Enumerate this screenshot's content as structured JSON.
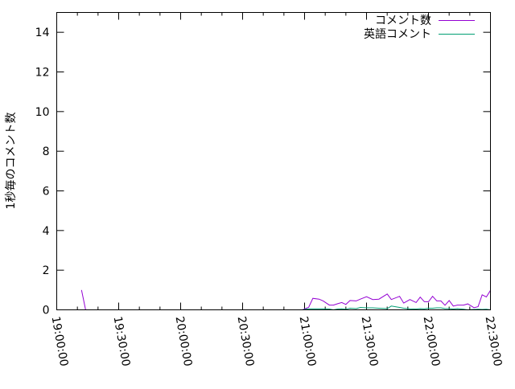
{
  "chart_data": {
    "type": "line",
    "title": "",
    "xlabel": "",
    "ylabel": "1秒毎のコメント数",
    "xlim": [
      "19:00:00",
      "22:30:00"
    ],
    "ylim": [
      0,
      15
    ],
    "x_ticks": [
      "19:00:00",
      "19:30:00",
      "20:00:00",
      "20:30:00",
      "21:00:00",
      "21:30:00",
      "22:00:00",
      "22:30:00"
    ],
    "y_ticks": [
      0,
      2,
      4,
      6,
      8,
      10,
      12,
      14
    ],
    "grid": false,
    "legend_position": "top-right",
    "series": [
      {
        "name": "コメント数",
        "color": "#9400d3",
        "x": [
          "19:12:00",
          "19:14:00",
          "20:45:00",
          "20:55:00",
          "20:59:00",
          "21:02:00",
          "21:04:00",
          "21:07:00",
          "21:09:00",
          "21:12:00",
          "21:14:00",
          "21:16:00",
          "21:18:00",
          "21:20:00",
          "21:22:00",
          "21:25:00",
          "21:27:00",
          "21:30:00",
          "21:33:00",
          "21:36:00",
          "21:40:00",
          "21:42:00",
          "21:46:00",
          "21:48:00",
          "21:51:00",
          "21:54:00",
          "21:56:00",
          "21:58:00",
          "22:00:00",
          "22:02:00",
          "22:04:00",
          "22:06:00",
          "22:08:00",
          "22:10:00",
          "22:12:00",
          "22:14:00",
          "22:17:00",
          "22:19:00",
          "22:22:00",
          "22:24:00",
          "22:26:00",
          "22:28:00",
          "22:30:00"
        ],
        "values": [
          1.0,
          0,
          0,
          0,
          0,
          0.13,
          0.58,
          0.54,
          0.45,
          0.24,
          0.24,
          0.31,
          0.37,
          0.27,
          0.47,
          0.45,
          0.54,
          0.66,
          0.52,
          0.54,
          0.8,
          0.52,
          0.68,
          0.34,
          0.52,
          0.37,
          0.64,
          0.41,
          0.41,
          0.68,
          0.45,
          0.45,
          0.23,
          0.47,
          0.19,
          0.24,
          0.24,
          0.3,
          0.11,
          0.16,
          0.76,
          0.65,
          0.98
        ]
      },
      {
        "name": "英語コメント",
        "color": "#009e73",
        "x": [
          "20:59:00",
          "21:02:00",
          "21:04:00",
          "21:07:00",
          "21:09:00",
          "21:12:00",
          "21:14:00",
          "21:16:00",
          "21:18:00",
          "21:20:00",
          "21:22:00",
          "21:25:00",
          "21:27:00",
          "21:30:00",
          "21:33:00",
          "21:36:00",
          "21:40:00",
          "21:42:00",
          "21:46:00",
          "21:48:00",
          "21:51:00",
          "21:54:00",
          "21:56:00",
          "21:58:00",
          "22:00:00",
          "22:02:00",
          "22:04:00",
          "22:06:00",
          "22:08:00",
          "22:10:00",
          "22:12:00",
          "22:14:00",
          "22:17:00",
          "22:19:00",
          "22:22:00",
          "22:24:00",
          "22:26:00",
          "22:28:00",
          "22:30:00"
        ],
        "values": [
          0,
          0.05,
          0.05,
          0.05,
          0.05,
          0.04,
          0,
          0.04,
          0.05,
          0.03,
          0.08,
          0.06,
          0.12,
          0.1,
          0.1,
          0.08,
          0.06,
          0.19,
          0.12,
          0.08,
          0.05,
          0.04,
          0.06,
          0.05,
          0.08,
          0.08,
          0.1,
          0.1,
          0.06,
          0.06,
          0.04,
          0.06,
          0.03,
          0,
          0.02,
          0.03,
          0.02,
          0.03,
          0
        ]
      }
    ]
  }
}
